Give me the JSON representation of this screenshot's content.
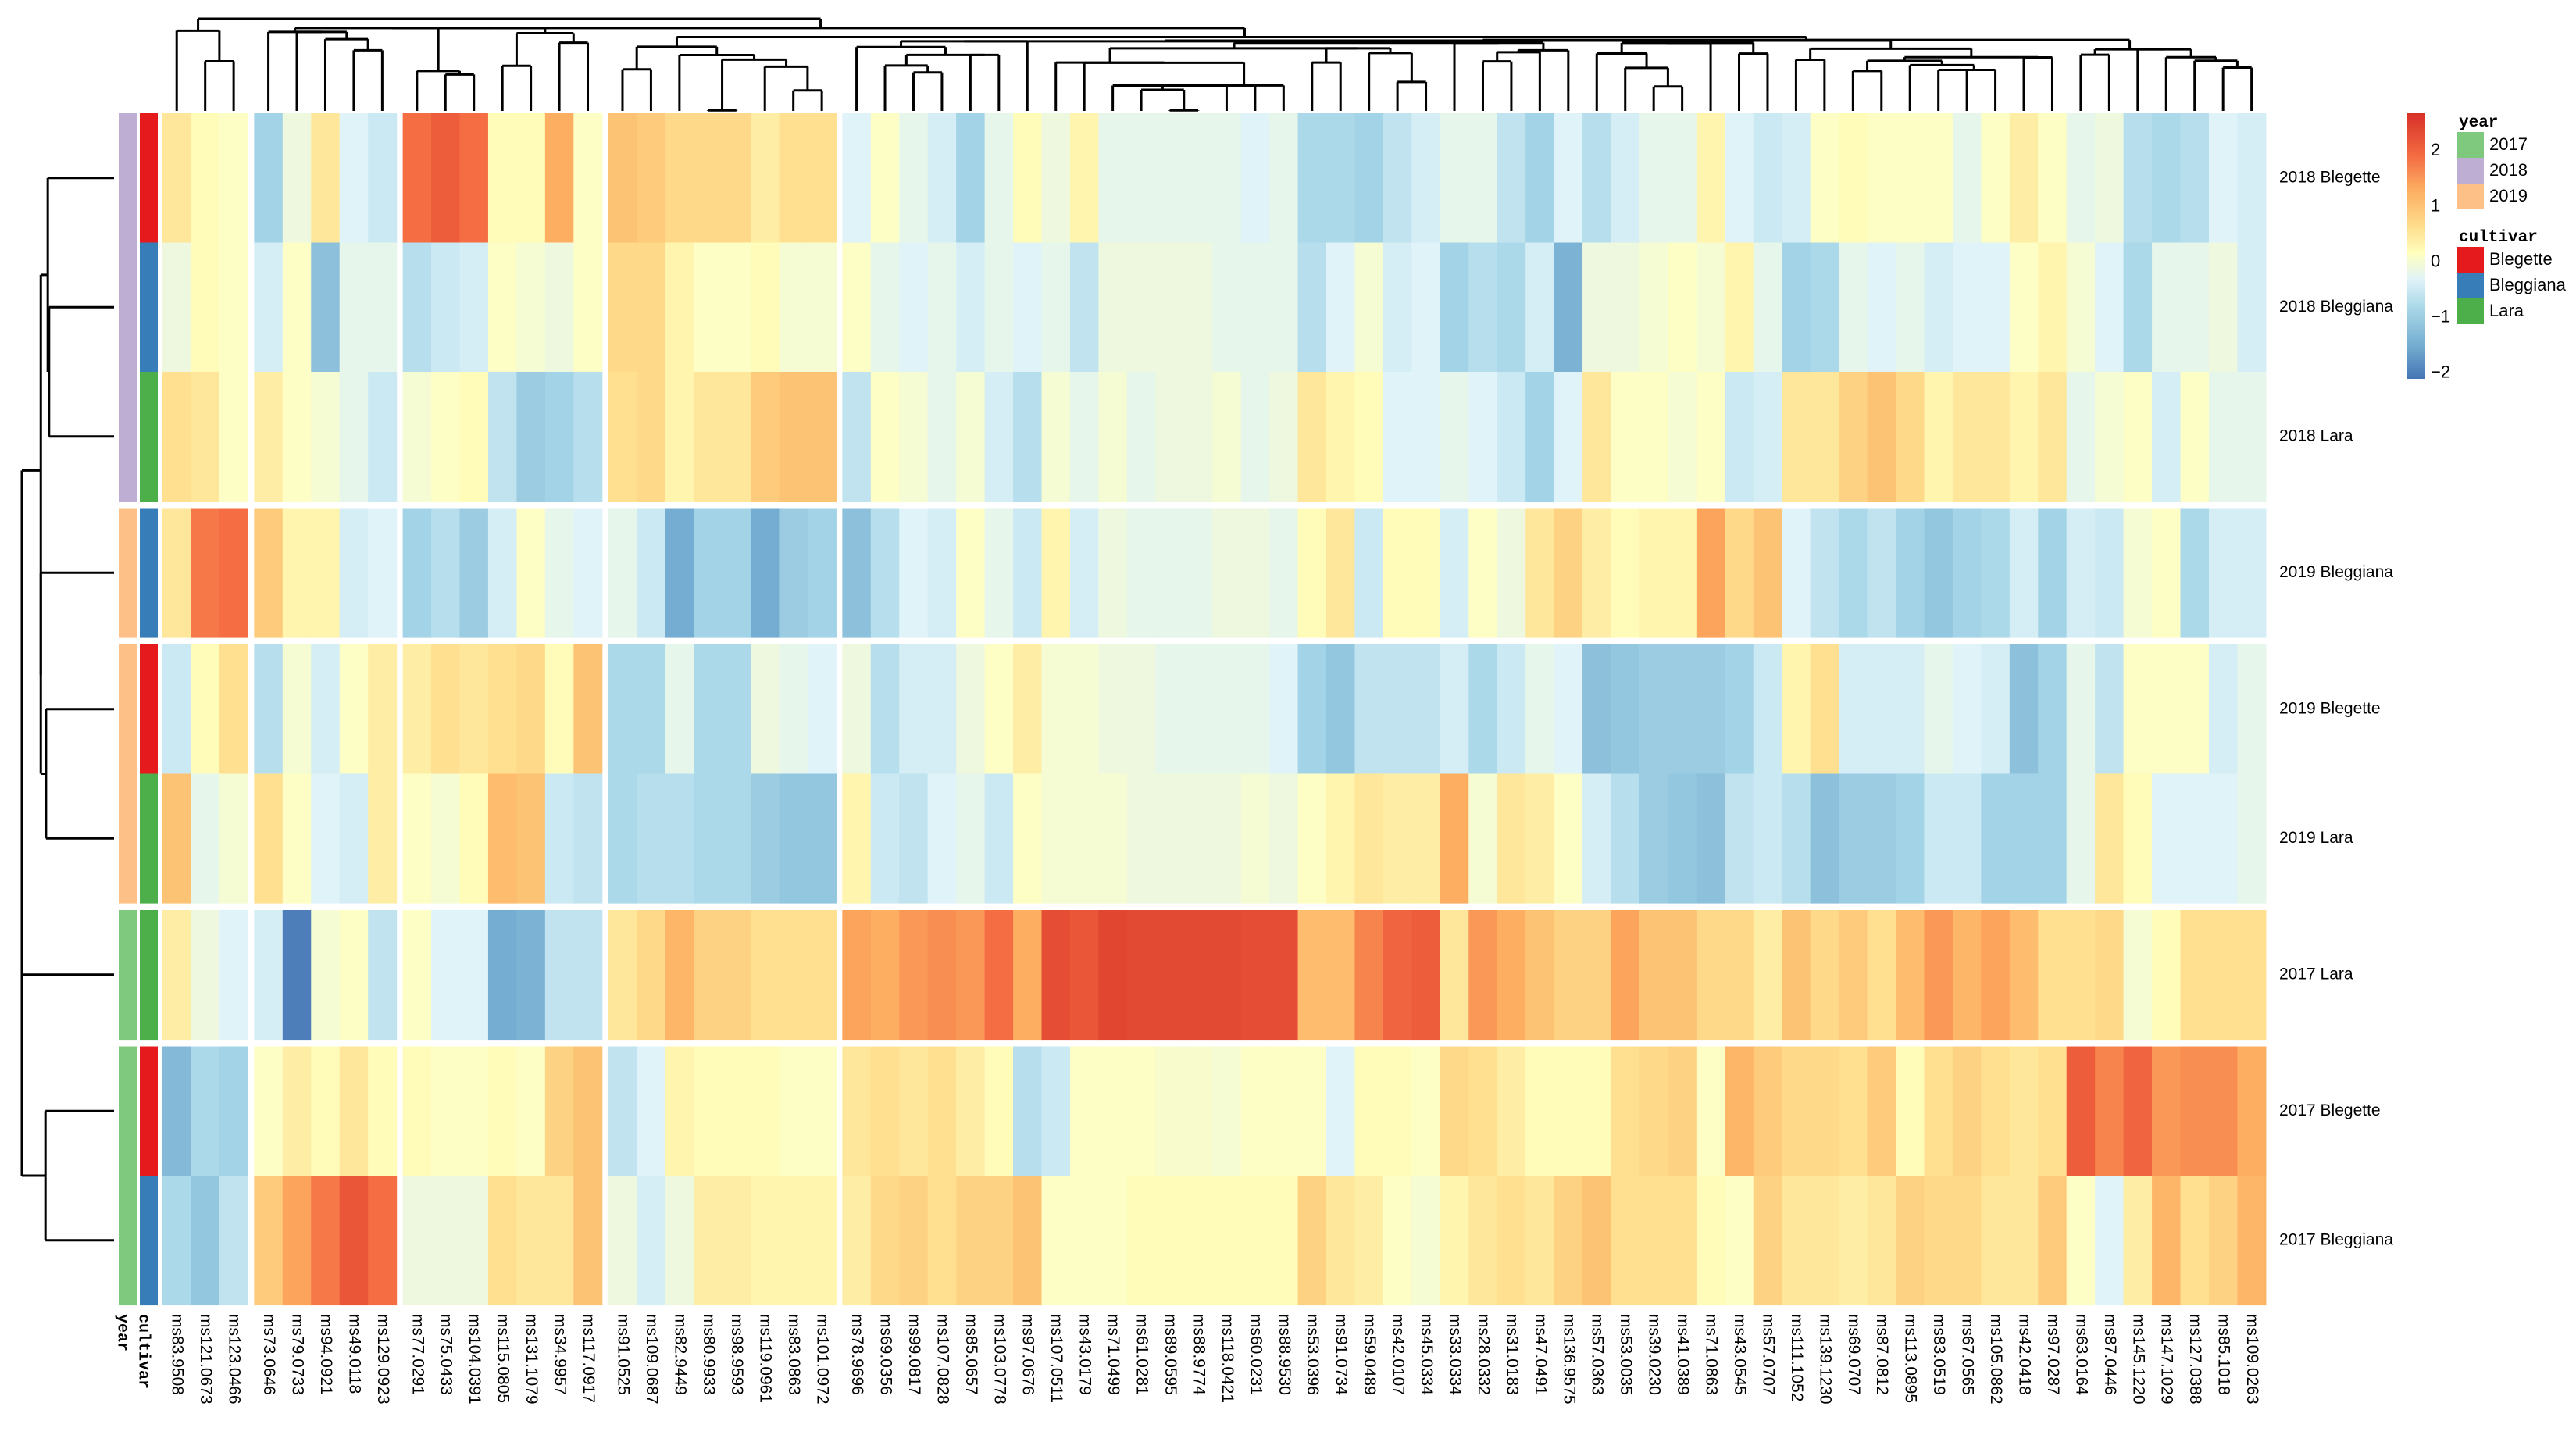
{
  "chart_data": {
    "type": "heatmap",
    "title": "",
    "rows": [
      "2018 Blegette",
      "2018 Bleggiana",
      "2018 Lara",
      "2019 Bleggiana",
      "2019 Blegette",
      "2019 Lara",
      "2017 Lara",
      "2017 Blegette",
      "2017 Bleggiana"
    ],
    "row_groups": [
      3,
      1,
      2,
      1,
      2
    ],
    "columns": [
      "ms83.9508",
      "ms121.0673",
      "ms123.0466",
      "ms73.0646",
      "ms79.0733",
      "ms94.0921",
      "ms49.0118",
      "ms129.0923",
      "ms77.0291",
      "ms75.0433",
      "ms104.0391",
      "ms115.0805",
      "ms131.1079",
      "ms34.9957",
      "ms117.0917",
      "ms91.0525",
      "ms109.0687",
      "ms82.9449",
      "ms80.9933",
      "ms98.9593",
      "ms119.0961",
      "ms83.0863",
      "ms101.0972",
      "ms78.9696",
      "ms69.0356",
      "ms99.0817",
      "ms107.0828",
      "ms85.0657",
      "ms103.0778",
      "ms97.0676",
      "ms107.0511",
      "ms43.0179",
      "ms71.0499",
      "ms61.0281",
      "ms89.0595",
      "ms88.9774",
      "ms118.0421",
      "ms60.0231",
      "ms88.9530",
      "ms53.0396",
      "ms91.0734",
      "ms59.0489",
      "ms42.0107",
      "ms45.0334",
      "ms33.0334",
      "ms28.0332",
      "ms31.0183",
      "ms47.0491",
      "ms136.9575",
      "ms57.0363",
      "ms53.0035",
      "ms39.0230",
      "ms41.0389",
      "ms71.0863",
      "ms43.0545",
      "ms57.0707",
      "ms111.1052",
      "ms139.1230",
      "ms69.0707",
      "ms87.0812",
      "ms113.0895",
      "ms83.0519",
      "ms67.0565",
      "ms105.0862",
      "ms42.0418",
      "ms97.0287",
      "ms63.0164",
      "ms87.0446",
      "ms145.1220",
      "ms147.1029",
      "ms127.0388",
      "ms85.1018",
      "ms109.0263"
    ],
    "column_groups": [
      3,
      5,
      7,
      8,
      50
    ],
    "values": [
      [
        0.5,
        0.2,
        0.1,
        -0.9,
        -0.1,
        0.5,
        -0.3,
        -0.5,
        1.9,
        2.1,
        1.9,
        0.2,
        0.2,
        1.3,
        0.1,
        1.0,
        0.9,
        0.7,
        0.7,
        0.7,
        0.4,
        0.6,
        0.6,
        -0.3,
        0.1,
        -0.2,
        -0.4,
        -0.9,
        -0.2,
        0.2,
        -0.1,
        0.3,
        -0.2,
        -0.2,
        -0.2,
        -0.2,
        -0.2,
        -0.3,
        -0.2,
        -0.8,
        -0.8,
        -0.9,
        -0.6,
        -0.4,
        -0.2,
        -0.2,
        -0.6,
        -0.9,
        -0.3,
        -0.7,
        -0.4,
        -0.2,
        -0.2,
        0.3,
        -0.3,
        -0.5,
        -0.4,
        0.1,
        0.2,
        0.1,
        0.1,
        0.1,
        -0.2,
        0.1,
        0.4,
        0.1,
        -0.2,
        -0.1,
        -0.7,
        -0.8,
        -0.7,
        -0.3,
        -0.4
      ],
      [
        -0.1,
        0.2,
        0.1,
        -0.4,
        0.1,
        -1.2,
        -0.2,
        -0.2,
        -0.7,
        -0.5,
        -0.4,
        0.1,
        0.0,
        -0.1,
        0.1,
        0.7,
        0.7,
        0.3,
        0.1,
        0.1,
        0.2,
        0.0,
        0.0,
        0.1,
        -0.2,
        -0.3,
        -0.2,
        -0.4,
        -0.2,
        -0.3,
        -0.2,
        -0.6,
        -0.1,
        -0.1,
        -0.1,
        -0.1,
        -0.2,
        -0.2,
        -0.2,
        -0.7,
        -0.3,
        0.0,
        -0.4,
        -0.3,
        -0.9,
        -0.7,
        -0.8,
        -0.4,
        -1.4,
        -0.1,
        -0.1,
        0.0,
        0.1,
        0.0,
        0.3,
        -0.2,
        -0.9,
        -0.8,
        -0.2,
        -0.3,
        -0.2,
        -0.4,
        -0.3,
        -0.3,
        0.1,
        0.3,
        0.0,
        -0.3,
        -0.8,
        -0.2,
        -0.2,
        -0.1,
        -0.4
      ],
      [
        0.6,
        0.5,
        0.1,
        0.4,
        0.1,
        0.0,
        -0.2,
        -0.5,
        0.0,
        0.1,
        0.2,
        -0.6,
        -1.0,
        -0.9,
        -0.7,
        0.6,
        0.7,
        0.3,
        0.5,
        0.5,
        0.9,
        1.0,
        1.0,
        -0.6,
        0.1,
        0.0,
        -0.2,
        0.0,
        -0.4,
        -0.7,
        0.0,
        -0.2,
        0.0,
        -0.2,
        -0.1,
        -0.1,
        0.0,
        -0.2,
        -0.1,
        0.5,
        0.3,
        0.2,
        -0.3,
        -0.3,
        -0.2,
        -0.3,
        -0.5,
        -0.9,
        -0.3,
        0.5,
        0.1,
        0.1,
        0.0,
        0.1,
        -0.5,
        -0.4,
        0.5,
        0.5,
        0.8,
        1.0,
        0.7,
        0.3,
        0.5,
        0.5,
        0.3,
        0.5,
        -0.2,
        0.0,
        0.1,
        -0.4,
        0.1,
        -0.2,
        -0.2
      ],
      [
        0.5,
        1.8,
        1.9,
        0.9,
        0.3,
        0.3,
        -0.4,
        -0.3,
        -0.9,
        -0.7,
        -1.0,
        -0.4,
        0.1,
        -0.2,
        -0.3,
        -0.2,
        -0.5,
        -1.5,
        -0.9,
        -0.9,
        -1.5,
        -1.0,
        -0.9,
        -1.2,
        -0.7,
        -0.3,
        -0.4,
        0.1,
        -0.2,
        -0.5,
        0.3,
        -0.4,
        -0.1,
        -0.2,
        -0.2,
        -0.2,
        -0.1,
        -0.1,
        -0.2,
        0.2,
        0.5,
        -0.5,
        0.2,
        0.2,
        -0.4,
        0.1,
        -0.1,
        0.5,
        0.8,
        0.4,
        0.2,
        0.3,
        0.3,
        1.4,
        0.7,
        1.0,
        -0.3,
        -0.6,
        -0.8,
        -0.6,
        -0.9,
        -1.1,
        -0.9,
        -0.8,
        -0.4,
        -0.9,
        -0.4,
        -0.5,
        0.0,
        0.1,
        -0.8,
        -0.4,
        -0.4
      ],
      [
        -0.5,
        0.2,
        0.6,
        -0.7,
        0.0,
        -0.4,
        0.1,
        0.4,
        0.4,
        0.6,
        0.5,
        0.6,
        0.7,
        0.2,
        1.0,
        -0.8,
        -0.8,
        -0.2,
        -0.8,
        -0.8,
        -0.1,
        -0.2,
        -0.3,
        -0.1,
        -0.7,
        -0.4,
        -0.4,
        -0.1,
        0.1,
        0.4,
        0.0,
        0.0,
        -0.1,
        -0.1,
        -0.2,
        -0.2,
        -0.2,
        -0.2,
        -0.3,
        -0.9,
        -1.1,
        -0.6,
        -0.6,
        -0.6,
        -0.4,
        -0.8,
        -0.5,
        -0.2,
        -0.3,
        -1.2,
        -1.1,
        -1.0,
        -1.0,
        -1.0,
        -0.9,
        -0.5,
        0.3,
        0.6,
        -0.4,
        -0.4,
        -0.4,
        -0.2,
        -0.3,
        -0.4,
        -1.2,
        -0.9,
        -0.2,
        -0.6,
        0.1,
        0.1,
        0.1,
        -0.4,
        -0.2
      ],
      [
        1.0,
        -0.2,
        0.0,
        0.6,
        0.1,
        -0.3,
        -0.4,
        0.4,
        0.1,
        0.0,
        0.2,
        1.1,
        1.0,
        -0.5,
        -0.6,
        -0.8,
        -0.7,
        -0.7,
        -0.8,
        -0.8,
        -1.0,
        -1.1,
        -1.1,
        0.3,
        -0.5,
        -0.6,
        -0.3,
        -0.2,
        -0.5,
        0.1,
        0.0,
        0.0,
        0.0,
        -0.1,
        -0.1,
        -0.1,
        -0.1,
        0.0,
        -0.1,
        0.1,
        0.3,
        0.5,
        0.4,
        0.4,
        1.3,
        0.0,
        0.5,
        0.4,
        0.1,
        -0.4,
        -0.7,
        -1.0,
        -1.1,
        -1.2,
        -0.6,
        -0.5,
        -0.7,
        -1.2,
        -1.0,
        -1.0,
        -0.9,
        -0.5,
        -0.5,
        -0.9,
        -0.9,
        -0.9,
        -0.2,
        0.5,
        0.2,
        -0.3,
        -0.3,
        -0.3,
        -0.2
      ],
      [
        0.4,
        -0.1,
        -0.3,
        -0.4,
        -2.0,
        0.0,
        0.1,
        -0.6,
        0.1,
        -0.3,
        -0.3,
        -1.5,
        -1.4,
        -0.6,
        -0.6,
        0.5,
        0.7,
        1.2,
        0.8,
        0.8,
        0.6,
        0.6,
        0.6,
        1.4,
        1.3,
        1.5,
        1.6,
        1.5,
        1.9,
        1.3,
        2.3,
        2.2,
        2.4,
        2.35,
        2.35,
        2.35,
        2.35,
        2.3,
        2.3,
        1.1,
        1.1,
        1.7,
        2.0,
        2.1,
        0.5,
        1.5,
        1.3,
        1.0,
        0.8,
        0.8,
        1.4,
        1.0,
        1.0,
        0.7,
        0.7,
        0.4,
        1.0,
        0.7,
        0.9,
        0.6,
        1.1,
        1.5,
        1.2,
        1.4,
        1.1,
        0.6,
        0.6,
        0.7,
        0.0,
        0.2,
        0.6,
        0.6,
        0.6
      ],
      [
        -1.3,
        -0.8,
        -0.9,
        0.1,
        0.4,
        0.2,
        0.5,
        0.2,
        0.2,
        0.1,
        0.1,
        0.2,
        0.1,
        0.8,
        1.0,
        -0.6,
        -0.3,
        0.3,
        0.2,
        0.2,
        0.2,
        0.1,
        0.1,
        0.5,
        0.6,
        0.5,
        0.6,
        0.4,
        0.2,
        -0.7,
        -0.5,
        0.1,
        0.1,
        0.1,
        0.05,
        0.05,
        0.0,
        0.1,
        0.1,
        0.1,
        -0.3,
        0.2,
        0.2,
        0.1,
        0.7,
        0.6,
        0.4,
        0.2,
        0.2,
        0.2,
        0.6,
        0.7,
        0.8,
        0.1,
        1.2,
        0.9,
        0.7,
        0.7,
        0.6,
        0.9,
        0.2,
        0.6,
        0.8,
        0.6,
        0.5,
        0.6,
        2.1,
        1.7,
        2.0,
        1.5,
        1.6,
        1.6,
        1.3
      ],
      [
        -0.8,
        -1.1,
        -0.6,
        0.9,
        1.4,
        1.8,
        2.2,
        1.9,
        -0.1,
        -0.1,
        -0.1,
        0.6,
        0.5,
        0.5,
        1.0,
        -0.1,
        -0.4,
        -0.1,
        0.4,
        0.4,
        0.3,
        0.3,
        0.3,
        0.4,
        0.7,
        0.8,
        0.6,
        0.8,
        0.8,
        1.0,
        0.1,
        0.1,
        0.1,
        0.2,
        0.2,
        0.2,
        0.2,
        0.2,
        0.2,
        0.8,
        0.5,
        0.4,
        0.1,
        0.0,
        0.3,
        0.5,
        0.6,
        0.5,
        0.8,
        1.0,
        0.6,
        0.6,
        0.6,
        0.2,
        0.1,
        0.8,
        0.5,
        0.5,
        0.4,
        0.5,
        0.8,
        0.7,
        0.7,
        0.5,
        0.5,
        0.9,
        0.1,
        -0.3,
        0.4,
        1.2,
        0.6,
        0.8,
        1.2
      ]
    ],
    "row_annotations": {
      "year": [
        "2018",
        "2018",
        "2018",
        "2019",
        "2019",
        "2019",
        "2017",
        "2017",
        "2017"
      ],
      "cultivar": [
        "Blegette",
        "Bleggiana",
        "Lara",
        "Bleggiana",
        "Blegette",
        "Lara",
        "Lara",
        "Blegette",
        "Bleggiana"
      ]
    },
    "annotation_labels": {
      "year": "year",
      "cultivar": "cultivar"
    },
    "color_scale": {
      "range": [
        -2.1,
        2.68
      ],
      "ticks": [
        2,
        1,
        0,
        -1,
        -2
      ],
      "tick_labels": [
        "2",
        "1",
        "0",
        "−1",
        "−2"
      ],
      "stops": [
        [
          -2.1,
          "#4575b4"
        ],
        [
          -1.5,
          "#74add1"
        ],
        [
          -0.8,
          "#abd9e9"
        ],
        [
          -0.3,
          "#e0f3f8"
        ],
        [
          0.15,
          "#ffffbf"
        ],
        [
          0.6,
          "#fee090"
        ],
        [
          1.3,
          "#fdae61"
        ],
        [
          1.9,
          "#f46d43"
        ],
        [
          2.68,
          "#d73027"
        ]
      ]
    },
    "legend": {
      "year": {
        "title": "year",
        "items": [
          {
            "label": "2017",
            "color": "#7fc97f"
          },
          {
            "label": "2018",
            "color": "#beaed4"
          },
          {
            "label": "2019",
            "color": "#fdc086"
          }
        ]
      },
      "cultivar": {
        "title": "cultivar",
        "items": [
          {
            "label": "Blegette",
            "color": "#e41a1c"
          },
          {
            "label": "Bleggiana",
            "color": "#377eb8"
          },
          {
            "label": "Lara",
            "color": "#4daf4a"
          }
        ]
      },
      "placement": "right"
    },
    "dendrograms": {
      "rows": true,
      "columns": true
    }
  }
}
